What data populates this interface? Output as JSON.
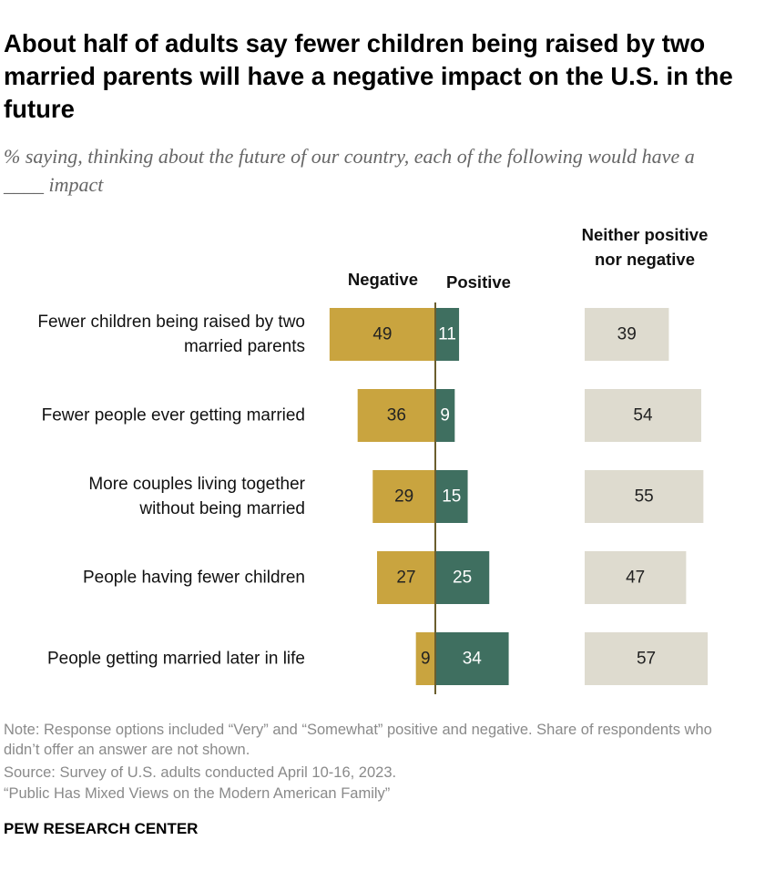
{
  "chart_data": {
    "type": "diverging_bar",
    "title": "About half of adults say fewer children being raised by two married parents will have a negative impact on the U.S. in the future",
    "subtitle": "% saying, thinking about the future of our country, each of the following would have a ____ impact",
    "categories": [
      "Fewer children being raised by two married parents",
      "Fewer people ever getting married",
      "More couples living together without being married",
      "People having fewer children",
      "People getting married later in life"
    ],
    "series": [
      {
        "name": "Negative",
        "color": "#c9a43f",
        "values": [
          49,
          36,
          29,
          27,
          9
        ]
      },
      {
        "name": "Positive",
        "color": "#3f6f60",
        "values": [
          11,
          9,
          15,
          25,
          34
        ]
      },
      {
        "name": "Neither positive nor negative",
        "color": "#dedbcf",
        "values": [
          39,
          54,
          55,
          47,
          57
        ]
      }
    ],
    "note": "Note: Response options included “Very” and “Somewhat” positive and negative. Share of respondents who didn’t offer an answer are not shown.",
    "source": "Source: Survey of U.S. adults conducted April 10-16, 2023.",
    "report": "“Public Has Mixed Views on the Modern American Family”",
    "brand": "PEW RESEARCH CENTER"
  }
}
